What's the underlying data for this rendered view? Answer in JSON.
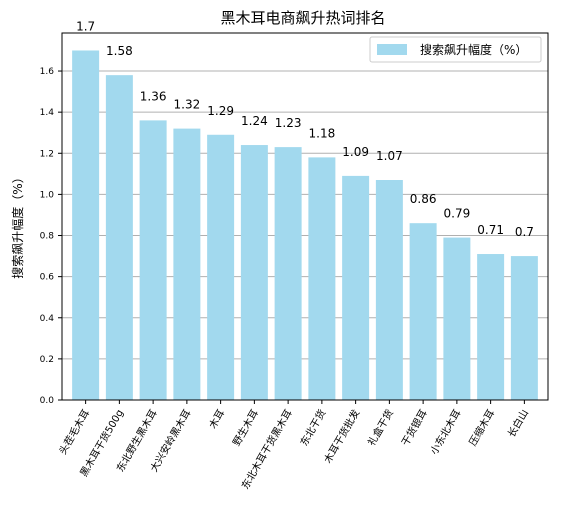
{
  "chart_data": {
    "type": "bar",
    "title": "黑木耳电商飙升热词排名",
    "xlabel": "",
    "ylabel": "搜索飙升幅度（%）",
    "categories": [
      "头茬毛木耳",
      "黑木耳干货500g",
      "东北野生黑木耳",
      "大兴安岭黑木耳",
      "木耳",
      "野生木耳",
      "东北木耳干货黑木耳",
      "东北干货",
      "木耳干货批发",
      "礼盒干货",
      "干货银耳",
      "小东北木耳",
      "压缩木耳",
      "长白山"
    ],
    "values": [
      1.7,
      1.58,
      1.36,
      1.32,
      1.29,
      1.24,
      1.23,
      1.18,
      1.09,
      1.07,
      0.86,
      0.79,
      0.71,
      0.7
    ],
    "series": [
      {
        "name": "搜索飙升幅度（%）",
        "values": [
          1.7,
          1.58,
          1.36,
          1.32,
          1.29,
          1.24,
          1.23,
          1.18,
          1.09,
          1.07,
          0.86,
          0.79,
          0.71,
          0.7
        ]
      }
    ],
    "yticks": [
      "0.0",
      "0.2",
      "0.4",
      "0.6",
      "0.8",
      "1.0",
      "1.2",
      "1.4",
      "1.6"
    ],
    "ylim": [
      0,
      1.785
    ],
    "grid": "horizontal",
    "legend_position": "top-right",
    "bar_color": "#a2d9ee",
    "grid_color": "#b0b0b0"
  }
}
